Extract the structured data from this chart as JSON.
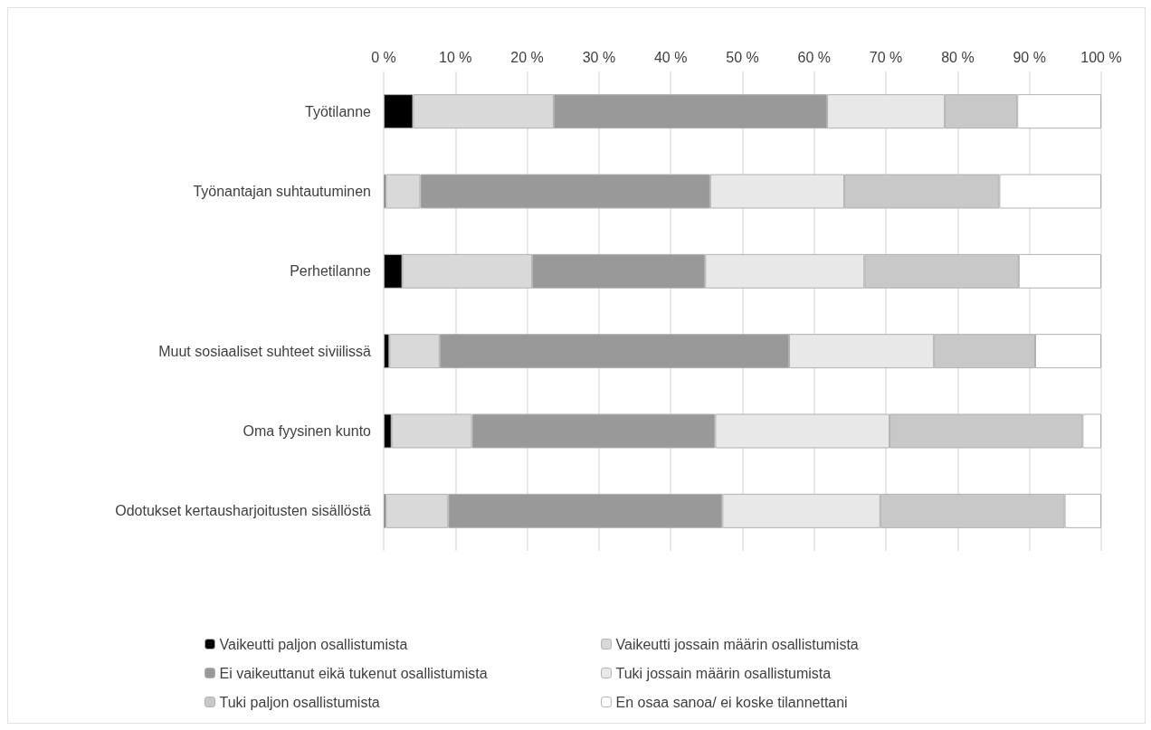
{
  "chart_data": {
    "type": "bar",
    "orientation": "horizontal",
    "stacked": true,
    "categories": [
      "Työtilanne",
      "Työnantajan suhtautuminen",
      "Perhetilanne",
      "Muut sosiaaliset suhteet siviilissä",
      "Oma fyysinen kunto",
      "Odotukset kertausharjoitusten sisällöstä"
    ],
    "series": [
      {
        "name": "Vaikeutti paljon osallistumista",
        "color": "#000000",
        "values": [
          4.1,
          0.3,
          2.6,
          0.8,
          1.1,
          0.3
        ]
      },
      {
        "name": "Vaikeutti jossain määrin osallistumista",
        "color": "#d9d9d9",
        "values": [
          19.6,
          4.8,
          18.1,
          7.0,
          11.2,
          8.7
        ]
      },
      {
        "name": "Ei vaikeuttanut eikä tukenut osallistumista",
        "color": "#999999",
        "values": [
          38.1,
          40.4,
          24.1,
          48.7,
          33.9,
          38.2
        ]
      },
      {
        "name": "Tuki jossain määrin osallistumista",
        "color": "#e8e8e8",
        "values": [
          16.4,
          18.7,
          22.2,
          20.2,
          24.3,
          22.0
        ]
      },
      {
        "name": "Tuki paljon osallistumista",
        "color": "#c8c8c8",
        "values": [
          10.1,
          21.6,
          21.5,
          14.1,
          26.9,
          25.7
        ]
      },
      {
        "name": "En osaa sanoa/ ei koske tilannettani",
        "color": "#ffffff",
        "values": [
          11.7,
          14.2,
          11.5,
          9.2,
          2.6,
          5.1
        ]
      }
    ],
    "xlim": [
      0,
      100
    ],
    "xticks": [
      {
        "value": 0,
        "label": "0 %"
      },
      {
        "value": 10,
        "label": "10 %"
      },
      {
        "value": 20,
        "label": "20 %"
      },
      {
        "value": 30,
        "label": "30 %"
      },
      {
        "value": 40,
        "label": "40 %"
      },
      {
        "value": 50,
        "label": "50 %"
      },
      {
        "value": 60,
        "label": "60 %"
      },
      {
        "value": 70,
        "label": "70 %"
      },
      {
        "value": 80,
        "label": "80 %"
      },
      {
        "value": 90,
        "label": "90 %"
      },
      {
        "value": 100,
        "label": "100 %"
      }
    ],
    "grid": "x",
    "legend": "bottom"
  }
}
